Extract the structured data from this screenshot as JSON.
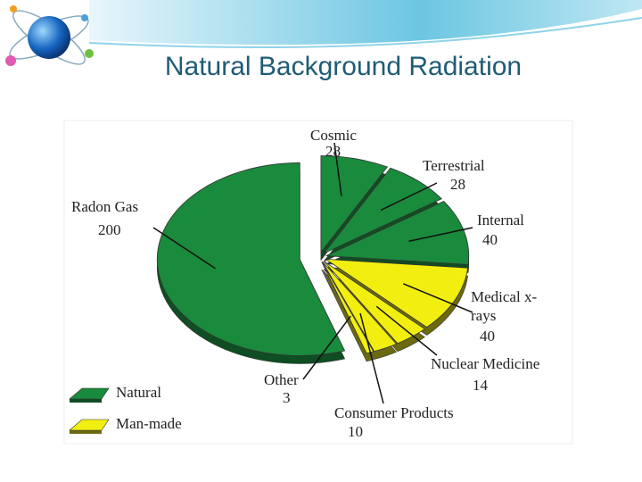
{
  "chart_data": {
    "type": "pie",
    "title": "Natural Background Radiation",
    "categories": [
      "Cosmic",
      "Terrestrial",
      "Internal",
      "Medical x-rays",
      "Nuclear Medicine",
      "Consumer Products",
      "Other",
      "Radon Gas"
    ],
    "values": [
      28,
      28,
      40,
      40,
      14,
      10,
      3,
      200
    ],
    "colors": [
      "#1a8a3c",
      "#1a8a3c",
      "#1a8a3c",
      "#f2ee10",
      "#f2ee10",
      "#f2ee10",
      "#f2ee10",
      "#1a8a3c"
    ],
    "legend": [
      {
        "name": "Natural",
        "color": "#1a8a3c"
      },
      {
        "name": "Man-made",
        "color": "#f2ee10"
      }
    ]
  }
}
